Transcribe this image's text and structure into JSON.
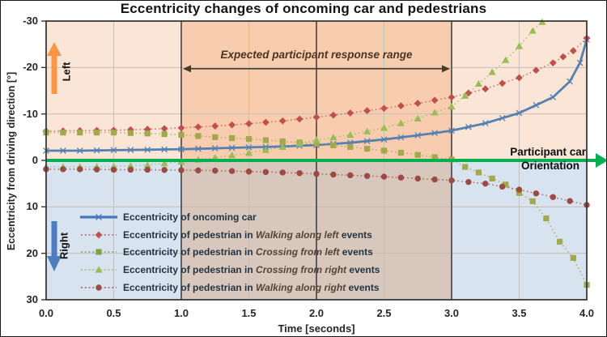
{
  "annotations": {
    "response_range": "Expected participant response range",
    "left": "Left",
    "right": "Right",
    "orientation1": "Participant car",
    "orientation2": "Orientation"
  },
  "colors": {
    "zero_line_green": "#00B050",
    "left_arrow_orange": "#F79646",
    "right_arrow_blue": "#4E7DBE",
    "dark_vline": "#2e2e2e",
    "gridline": "#c6beb8",
    "plot_border": "#3a3a3a",
    "range_arrow": "#4a3a2a",
    "bg_above_outer": "#FBE5D6",
    "bg_above_mid": "#F8CDAF",
    "bg_below_outer": "#D8E3F0",
    "bg_below_mid": "#D8C7BC"
  },
  "regions": {
    "above_zero": [
      {
        "from": 0,
        "to": 1,
        "color": "#FBE5D6"
      },
      {
        "from": 1,
        "to": 3,
        "color": "#F8CDAF"
      },
      {
        "from": 3,
        "to": 4,
        "color": "#FBE5D6"
      }
    ],
    "below_zero": [
      {
        "from": 0,
        "to": 1,
        "color": "#D8E3F0"
      },
      {
        "from": 1,
        "to": 3,
        "color": "#D8C7BC"
      },
      {
        "from": 3,
        "to": 4,
        "color": "#D8E3F0"
      }
    ]
  },
  "legend": [
    {
      "prefix": "Eccentricity of oncoming car",
      "italic": "",
      "suffix": ""
    },
    {
      "prefix": "Eccentricity of pedestrian in ",
      "italic": "Walking along left",
      "suffix": " events"
    },
    {
      "prefix": "Eccentricity of pedestrian in ",
      "italic": "Crossing from left",
      "suffix": " events"
    },
    {
      "prefix": "Eccentricity of pedestrian in ",
      "italic": "Crossing from right",
      "suffix": " events"
    },
    {
      "prefix": "Eccentricity of pedestrian in ",
      "italic": "Walking along right",
      "suffix": " events"
    }
  ],
  "chart_data": {
    "type": "line",
    "title": "Eccentricity changes of oncoming car and pedestrians",
    "xlabel": "Time [seconds]",
    "ylabel": "Eccentricity from driving direction [°]",
    "xlim": [
      0,
      4
    ],
    "ylim_top_to_bottom": [
      -30,
      30
    ],
    "y_axis_inverted": true,
    "x_ticks": [
      "0.0",
      "0.5",
      "1.0",
      "1.5",
      "2.0",
      "2.5",
      "3.0",
      "3.5",
      "4.0"
    ],
    "x_tick_values": [
      0,
      0.5,
      1,
      1.5,
      2,
      2.5,
      3,
      3.5,
      4
    ],
    "y_ticks": [
      "-30",
      "-20",
      "-10",
      "0",
      "10",
      "20",
      "30"
    ],
    "y_tick_values": [
      -30,
      -20,
      -10,
      0,
      10,
      20,
      30
    ],
    "dark_vlines_at": [
      1,
      2,
      3
    ],
    "light_vgrid_at": [
      0.5,
      1.5,
      2.5,
      3.5
    ],
    "light_hgrid_at": [
      -20,
      -10,
      10,
      20
    ],
    "response_range_seconds": [
      1.0,
      3.0
    ],
    "legend_position": "inside lower-left",
    "series": [
      {
        "name": "Eccentricity of oncoming car",
        "marker": "x",
        "line_style": "solid",
        "color": "#5580B0",
        "legend_color": "#4477BB",
        "points": [
          [
            0,
            -2.1
          ],
          [
            0.25,
            -2.1
          ],
          [
            0.5,
            -2.2
          ],
          [
            0.75,
            -2.3
          ],
          [
            1.0,
            -2.4
          ],
          [
            1.25,
            -2.6
          ],
          [
            1.5,
            -2.8
          ],
          [
            1.75,
            -3.0
          ],
          [
            2.0,
            -3.3
          ],
          [
            2.25,
            -3.8
          ],
          [
            2.5,
            -4.5
          ],
          [
            2.75,
            -5.4
          ],
          [
            3.0,
            -6.4
          ],
          [
            3.25,
            -8.0
          ],
          [
            3.5,
            -10.2
          ],
          [
            3.75,
            -13.6
          ],
          [
            3.875,
            -17.0
          ],
          [
            3.95,
            -21.0
          ],
          [
            4.0,
            -26.0
          ]
        ]
      },
      {
        "name": "Eccentricity of pedestrian in Walking along left events",
        "marker": "diamond",
        "line_style": "dotted",
        "color": "#C0504D",
        "legend_color": "#C0504D",
        "points": [
          [
            0,
            -6.3
          ],
          [
            0.25,
            -6.4
          ],
          [
            0.5,
            -6.5
          ],
          [
            0.75,
            -6.7
          ],
          [
            1.0,
            -7.0
          ],
          [
            1.25,
            -7.4
          ],
          [
            1.5,
            -7.9
          ],
          [
            1.75,
            -8.5
          ],
          [
            2.0,
            -9.3
          ],
          [
            2.25,
            -10.2
          ],
          [
            2.5,
            -11.2
          ],
          [
            2.75,
            -12.3
          ],
          [
            3.0,
            -13.6
          ],
          [
            3.25,
            -15.4
          ],
          [
            3.5,
            -17.8
          ],
          [
            3.75,
            -21.0
          ],
          [
            3.9,
            -23.6
          ],
          [
            4.0,
            -26.3
          ]
        ]
      },
      {
        "name": "Eccentricity of pedestrian in Crossing from left events",
        "marker": "square",
        "line_style": "dotted",
        "color": "#A3A74E",
        "legend_color": "#84A04C",
        "points": [
          [
            0,
            -6.0
          ],
          [
            0.25,
            -6.0
          ],
          [
            0.5,
            -6.0
          ],
          [
            0.75,
            -5.8
          ],
          [
            1.0,
            -5.5
          ],
          [
            1.25,
            -5.0
          ],
          [
            1.5,
            -4.6
          ],
          [
            1.75,
            -4.1
          ],
          [
            2.0,
            -3.6
          ],
          [
            2.25,
            -2.9
          ],
          [
            2.5,
            -2.1
          ],
          [
            2.75,
            -1.2
          ],
          [
            3.0,
            -0.2
          ],
          [
            3.1,
            1.4
          ],
          [
            3.2,
            2.6
          ],
          [
            3.3,
            3.9
          ],
          [
            3.4,
            5.2
          ],
          [
            3.5,
            7.0
          ],
          [
            3.6,
            8.8
          ],
          [
            3.7,
            12.5
          ],
          [
            3.8,
            17.5
          ],
          [
            3.9,
            21.0
          ],
          [
            4.0,
            26.8
          ]
        ]
      },
      {
        "name": "Eccentricity of pedestrian in Crossing from right events",
        "marker": "triangle",
        "line_style": "dotted",
        "color": "#9BBB59",
        "legend_color": "#9BBB59",
        "points": [
          [
            0,
            1.4
          ],
          [
            0.25,
            1.4
          ],
          [
            0.5,
            1.3
          ],
          [
            0.75,
            1.0
          ],
          [
            1.0,
            0.3
          ],
          [
            1.25,
            -0.6
          ],
          [
            1.5,
            -1.6
          ],
          [
            1.75,
            -2.9
          ],
          [
            2.0,
            -4.4
          ],
          [
            2.25,
            -5.5
          ],
          [
            2.5,
            -7.0
          ],
          [
            2.75,
            -9.0
          ],
          [
            3.0,
            -11.6
          ],
          [
            3.1,
            -13.9
          ],
          [
            3.2,
            -16.5
          ],
          [
            3.3,
            -19.0
          ],
          [
            3.4,
            -21.6
          ],
          [
            3.5,
            -24.6
          ],
          [
            3.6,
            -27.9
          ],
          [
            3.67,
            -29.8
          ]
        ]
      },
      {
        "name": "Eccentricity of pedestrian in Walking along right events",
        "marker": "circle",
        "line_style": "dotted",
        "color": "#9C4A44",
        "legend_color": "#9C4A44",
        "points": [
          [
            0,
            1.9
          ],
          [
            0.25,
            1.9
          ],
          [
            0.5,
            2.0
          ],
          [
            0.75,
            2.0
          ],
          [
            1.0,
            2.1
          ],
          [
            1.25,
            2.2
          ],
          [
            1.5,
            2.4
          ],
          [
            1.75,
            2.6
          ],
          [
            2.0,
            2.9
          ],
          [
            2.25,
            3.2
          ],
          [
            2.5,
            3.5
          ],
          [
            2.75,
            3.9
          ],
          [
            3.0,
            4.3
          ],
          [
            3.25,
            5.0
          ],
          [
            3.5,
            6.3
          ],
          [
            3.75,
            7.9
          ],
          [
            4.0,
            9.6
          ]
        ]
      }
    ]
  }
}
